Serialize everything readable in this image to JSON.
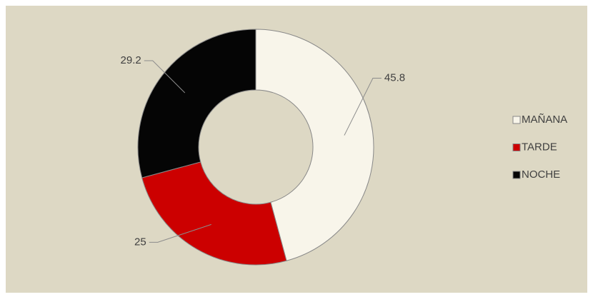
{
  "chart_data": {
    "type": "donut",
    "categories": [
      "MAÑANA",
      "TARDE",
      "NOCHE"
    ],
    "values": [
      45.8,
      25,
      29.2
    ],
    "colors": [
      "#f8f5ea",
      "#cc0000",
      "#050505"
    ],
    "legend": "right"
  }
}
